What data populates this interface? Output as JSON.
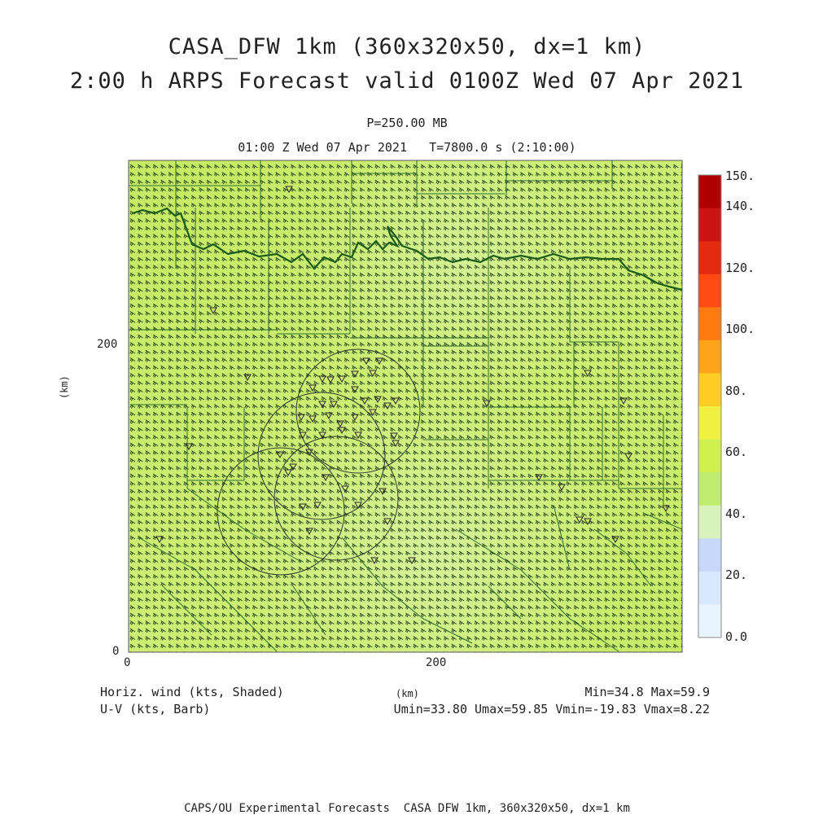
{
  "header": {
    "title_line1": "CASA_DFW 1km (360x320x50, dx=1 km)",
    "title_line2": "2:00 h ARPS Forecast valid 0100Z Wed 07 Apr 2021",
    "level": "P=250.00 MB",
    "time": "01:00 Z Wed 07 Apr 2021   T=7800.0 s (2:10:00)"
  },
  "axes": {
    "x_label": "(km)",
    "y_label": "(km)",
    "x_ticks": [
      "0",
      "200"
    ],
    "y_ticks": [
      "0",
      "200"
    ]
  },
  "colorbar": {
    "labels": [
      "150.",
      "140.",
      "120.",
      "100.",
      "80.",
      "60.",
      "40.",
      "20.",
      "0.0"
    ],
    "colors": [
      "#b00000",
      "#cc1414",
      "#e42a10",
      "#ff4a14",
      "#ff7a10",
      "#ffa41a",
      "#ffcc24",
      "#f0f040",
      "#d0f050",
      "#c0ec70",
      "#d8f4bc",
      "#c8d8f8",
      "#d8e8ff",
      "#e8f4ff"
    ]
  },
  "footer": {
    "field1": "Horiz. wind (kts, Shaded)",
    "field2": "U-V (kts, Barb)",
    "unit": "(km)",
    "minmax": "Min=34.8 Max=59.9",
    "uv_stats": "Umin=33.80 Umax=59.85 Vmin=-19.83 Vmax=8.22",
    "credit": "CAPS/OU Experimental Forecasts  CASA DFW 1km, 360x320x50, dx=1 km"
  },
  "map": {
    "fill_color": "#c8ec64",
    "line_color": "#1a5c1a"
  }
}
